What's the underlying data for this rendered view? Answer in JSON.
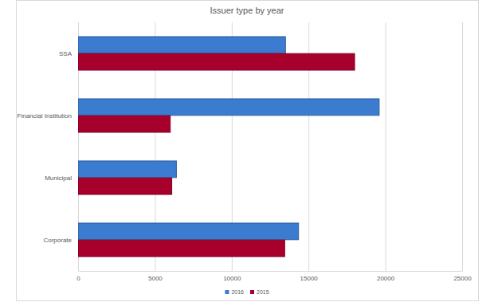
{
  "chart_data": {
    "type": "bar",
    "title": "Issuer type by year",
    "orientation": "horizontal",
    "categories": [
      "SSA",
      "Financial Institution",
      "Municipal",
      "Corporate"
    ],
    "series": [
      {
        "name": "2016",
        "color": "#3b7bd0",
        "values": [
          13500,
          19600,
          6400,
          14350
        ]
      },
      {
        "name": "2015",
        "color": "#a8002c",
        "values": [
          18000,
          6000,
          6100,
          13450
        ]
      }
    ],
    "xlim": [
      0,
      25000
    ],
    "xticks": [
      0,
      5000,
      10000,
      15000,
      20000,
      25000
    ],
    "grid": true,
    "legend": "bottom"
  }
}
